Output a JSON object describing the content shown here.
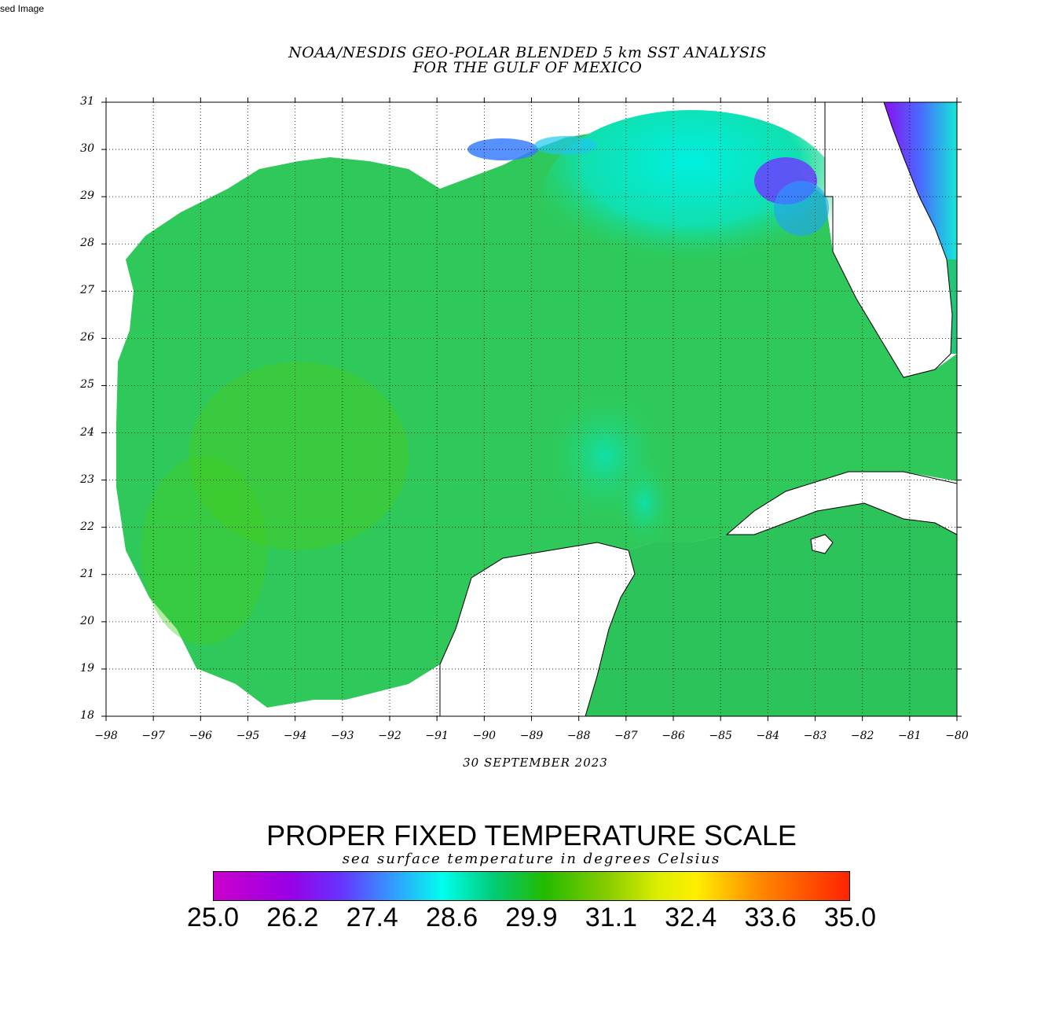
{
  "alt_text": "sed Image",
  "map": {
    "title_line1": "NOAA/NESDIS GEO-POLAR BLENDED 5 km SST ANALYSIS",
    "title_line2": "FOR THE GULF OF MEXICO",
    "date": "30 SEPTEMBER 2023",
    "lat_ticks": [
      "31",
      "30",
      "29",
      "28",
      "27",
      "26",
      "25",
      "24",
      "23",
      "22",
      "21",
      "20",
      "19",
      "18"
    ],
    "lon_ticks": [
      "−98",
      "−97",
      "−96",
      "−95",
      "−94",
      "−93",
      "−92",
      "−91",
      "−90",
      "−89",
      "−88",
      "−87",
      "−86",
      "−85",
      "−84",
      "−83",
      "−82",
      "−81",
      "−80"
    ],
    "lat_range": [
      18,
      31
    ],
    "lon_range": [
      -98,
      -80
    ],
    "grid": true,
    "land_color": "#ffffff",
    "dominant_sea_color": "#22bb00"
  },
  "scale": {
    "title": "PROPER FIXED TEMPERATURE SCALE",
    "subtitle": "sea surface temperature in degrees Celsius",
    "labels": [
      "25.0",
      "26.2",
      "27.4",
      "28.6",
      "29.9",
      "31.1",
      "32.4",
      "33.6",
      "35.0"
    ],
    "range": [
      25.0,
      35.0
    ],
    "colors": [
      "#cc00cc",
      "#9900e6",
      "#6633ff",
      "#3399ff",
      "#00ffee",
      "#00cc77",
      "#22bb00",
      "#88cc00",
      "#ddee00",
      "#ffee00",
      "#ff8800",
      "#ff2200"
    ]
  }
}
